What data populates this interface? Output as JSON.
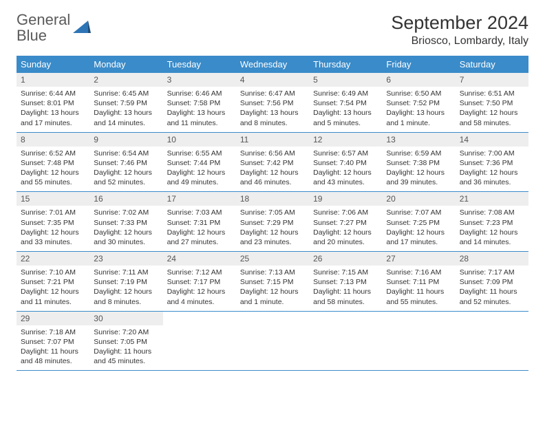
{
  "logo": {
    "general": "General",
    "blue": "Blue"
  },
  "title": "September 2024",
  "location": "Briosco, Lombardy, Italy",
  "dayNames": [
    "Sunday",
    "Monday",
    "Tuesday",
    "Wednesday",
    "Thursday",
    "Friday",
    "Saturday"
  ],
  "colors": {
    "headerBg": "#3a8bc9",
    "dayNumBg": "#eeeeee",
    "logoGray": "#5a5a5a",
    "logoBlue": "#2e75b6"
  },
  "weeks": [
    [
      {
        "num": "1",
        "sunrise": "Sunrise: 6:44 AM",
        "sunset": "Sunset: 8:01 PM",
        "daylight": "Daylight: 13 hours and 17 minutes."
      },
      {
        "num": "2",
        "sunrise": "Sunrise: 6:45 AM",
        "sunset": "Sunset: 7:59 PM",
        "daylight": "Daylight: 13 hours and 14 minutes."
      },
      {
        "num": "3",
        "sunrise": "Sunrise: 6:46 AM",
        "sunset": "Sunset: 7:58 PM",
        "daylight": "Daylight: 13 hours and 11 minutes."
      },
      {
        "num": "4",
        "sunrise": "Sunrise: 6:47 AM",
        "sunset": "Sunset: 7:56 PM",
        "daylight": "Daylight: 13 hours and 8 minutes."
      },
      {
        "num": "5",
        "sunrise": "Sunrise: 6:49 AM",
        "sunset": "Sunset: 7:54 PM",
        "daylight": "Daylight: 13 hours and 5 minutes."
      },
      {
        "num": "6",
        "sunrise": "Sunrise: 6:50 AM",
        "sunset": "Sunset: 7:52 PM",
        "daylight": "Daylight: 13 hours and 1 minute."
      },
      {
        "num": "7",
        "sunrise": "Sunrise: 6:51 AM",
        "sunset": "Sunset: 7:50 PM",
        "daylight": "Daylight: 12 hours and 58 minutes."
      }
    ],
    [
      {
        "num": "8",
        "sunrise": "Sunrise: 6:52 AM",
        "sunset": "Sunset: 7:48 PM",
        "daylight": "Daylight: 12 hours and 55 minutes."
      },
      {
        "num": "9",
        "sunrise": "Sunrise: 6:54 AM",
        "sunset": "Sunset: 7:46 PM",
        "daylight": "Daylight: 12 hours and 52 minutes."
      },
      {
        "num": "10",
        "sunrise": "Sunrise: 6:55 AM",
        "sunset": "Sunset: 7:44 PM",
        "daylight": "Daylight: 12 hours and 49 minutes."
      },
      {
        "num": "11",
        "sunrise": "Sunrise: 6:56 AM",
        "sunset": "Sunset: 7:42 PM",
        "daylight": "Daylight: 12 hours and 46 minutes."
      },
      {
        "num": "12",
        "sunrise": "Sunrise: 6:57 AM",
        "sunset": "Sunset: 7:40 PM",
        "daylight": "Daylight: 12 hours and 43 minutes."
      },
      {
        "num": "13",
        "sunrise": "Sunrise: 6:59 AM",
        "sunset": "Sunset: 7:38 PM",
        "daylight": "Daylight: 12 hours and 39 minutes."
      },
      {
        "num": "14",
        "sunrise": "Sunrise: 7:00 AM",
        "sunset": "Sunset: 7:36 PM",
        "daylight": "Daylight: 12 hours and 36 minutes."
      }
    ],
    [
      {
        "num": "15",
        "sunrise": "Sunrise: 7:01 AM",
        "sunset": "Sunset: 7:35 PM",
        "daylight": "Daylight: 12 hours and 33 minutes."
      },
      {
        "num": "16",
        "sunrise": "Sunrise: 7:02 AM",
        "sunset": "Sunset: 7:33 PM",
        "daylight": "Daylight: 12 hours and 30 minutes."
      },
      {
        "num": "17",
        "sunrise": "Sunrise: 7:03 AM",
        "sunset": "Sunset: 7:31 PM",
        "daylight": "Daylight: 12 hours and 27 minutes."
      },
      {
        "num": "18",
        "sunrise": "Sunrise: 7:05 AM",
        "sunset": "Sunset: 7:29 PM",
        "daylight": "Daylight: 12 hours and 23 minutes."
      },
      {
        "num": "19",
        "sunrise": "Sunrise: 7:06 AM",
        "sunset": "Sunset: 7:27 PM",
        "daylight": "Daylight: 12 hours and 20 minutes."
      },
      {
        "num": "20",
        "sunrise": "Sunrise: 7:07 AM",
        "sunset": "Sunset: 7:25 PM",
        "daylight": "Daylight: 12 hours and 17 minutes."
      },
      {
        "num": "21",
        "sunrise": "Sunrise: 7:08 AM",
        "sunset": "Sunset: 7:23 PM",
        "daylight": "Daylight: 12 hours and 14 minutes."
      }
    ],
    [
      {
        "num": "22",
        "sunrise": "Sunrise: 7:10 AM",
        "sunset": "Sunset: 7:21 PM",
        "daylight": "Daylight: 12 hours and 11 minutes."
      },
      {
        "num": "23",
        "sunrise": "Sunrise: 7:11 AM",
        "sunset": "Sunset: 7:19 PM",
        "daylight": "Daylight: 12 hours and 8 minutes."
      },
      {
        "num": "24",
        "sunrise": "Sunrise: 7:12 AM",
        "sunset": "Sunset: 7:17 PM",
        "daylight": "Daylight: 12 hours and 4 minutes."
      },
      {
        "num": "25",
        "sunrise": "Sunrise: 7:13 AM",
        "sunset": "Sunset: 7:15 PM",
        "daylight": "Daylight: 12 hours and 1 minute."
      },
      {
        "num": "26",
        "sunrise": "Sunrise: 7:15 AM",
        "sunset": "Sunset: 7:13 PM",
        "daylight": "Daylight: 11 hours and 58 minutes."
      },
      {
        "num": "27",
        "sunrise": "Sunrise: 7:16 AM",
        "sunset": "Sunset: 7:11 PM",
        "daylight": "Daylight: 11 hours and 55 minutes."
      },
      {
        "num": "28",
        "sunrise": "Sunrise: 7:17 AM",
        "sunset": "Sunset: 7:09 PM",
        "daylight": "Daylight: 11 hours and 52 minutes."
      }
    ],
    [
      {
        "num": "29",
        "sunrise": "Sunrise: 7:18 AM",
        "sunset": "Sunset: 7:07 PM",
        "daylight": "Daylight: 11 hours and 48 minutes."
      },
      {
        "num": "30",
        "sunrise": "Sunrise: 7:20 AM",
        "sunset": "Sunset: 7:05 PM",
        "daylight": "Daylight: 11 hours and 45 minutes."
      },
      null,
      null,
      null,
      null,
      null
    ]
  ]
}
